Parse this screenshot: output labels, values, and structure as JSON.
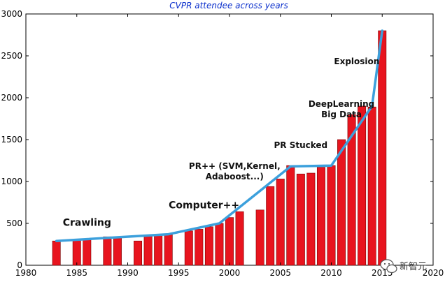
{
  "chart_data": {
    "type": "bar",
    "title": "CVPR attendee across years",
    "xlabel": "",
    "ylabel": "",
    "xlim": [
      1980,
      2020
    ],
    "ylim": [
      0,
      3000
    ],
    "x_ticks": [
      1980,
      1985,
      1990,
      1995,
      2000,
      2005,
      2010,
      2015,
      2020
    ],
    "y_ticks": [
      0,
      500,
      1000,
      1500,
      2000,
      2500,
      3000
    ],
    "bar_color": "#e8141e",
    "line_color": "#3ca0dc",
    "bars": [
      {
        "x": 1983,
        "value": 290
      },
      {
        "x": 1985,
        "value": 300
      },
      {
        "x": 1986,
        "value": 305
      },
      {
        "x": 1988,
        "value": 340
      },
      {
        "x": 1989,
        "value": 335
      },
      {
        "x": 1991,
        "value": 290
      },
      {
        "x": 1992,
        "value": 350
      },
      {
        "x": 1993,
        "value": 360
      },
      {
        "x": 1994,
        "value": 365
      },
      {
        "x": 1996,
        "value": 410
      },
      {
        "x": 1997,
        "value": 430
      },
      {
        "x": 1998,
        "value": 460
      },
      {
        "x": 1999,
        "value": 500
      },
      {
        "x": 2000,
        "value": 570
      },
      {
        "x": 2001,
        "value": 640
      },
      {
        "x": 2003,
        "value": 660
      },
      {
        "x": 2004,
        "value": 940
      },
      {
        "x": 2005,
        "value": 1030
      },
      {
        "x": 2006,
        "value": 1190
      },
      {
        "x": 2007,
        "value": 1090
      },
      {
        "x": 2008,
        "value": 1100
      },
      {
        "x": 2009,
        "value": 1170
      },
      {
        "x": 2010,
        "value": 1190
      },
      {
        "x": 2011,
        "value": 1500
      },
      {
        "x": 2012,
        "value": 1800
      },
      {
        "x": 2013,
        "value": 1900
      },
      {
        "x": 2014,
        "value": 1890
      },
      {
        "x": 2015,
        "value": 2800
      }
    ],
    "trend_line": [
      {
        "x": 1983,
        "y": 290
      },
      {
        "x": 1994,
        "y": 370
      },
      {
        "x": 1999,
        "y": 500
      },
      {
        "x": 2006,
        "y": 1180
      },
      {
        "x": 2010,
        "y": 1190
      },
      {
        "x": 2014,
        "y": 1900
      },
      {
        "x": 2015,
        "y": 2800
      }
    ],
    "annotations": [
      {
        "lines": [
          "Crawling"
        ],
        "x": 1986,
        "y": 470,
        "size": 14
      },
      {
        "lines": [
          "Computer++"
        ],
        "x": 1997.5,
        "y": 680,
        "size": 14
      },
      {
        "lines": [
          "PR++ (SVM,Kernel,",
          "Adaboost...)"
        ],
        "x": 2000.5,
        "y": 1150,
        "size": 12
      },
      {
        "lines": [
          "PR Stucked"
        ],
        "x": 2007,
        "y": 1400,
        "size": 12
      },
      {
        "lines": [
          "DeepLearning",
          "Big Data"
        ],
        "x": 2011,
        "y": 1890,
        "size": 12
      },
      {
        "lines": [
          "Explosion"
        ],
        "x": 2012.5,
        "y": 2400,
        "size": 12
      }
    ]
  },
  "watermark": {
    "text": "新智元",
    "icon": "wechat-icon"
  }
}
